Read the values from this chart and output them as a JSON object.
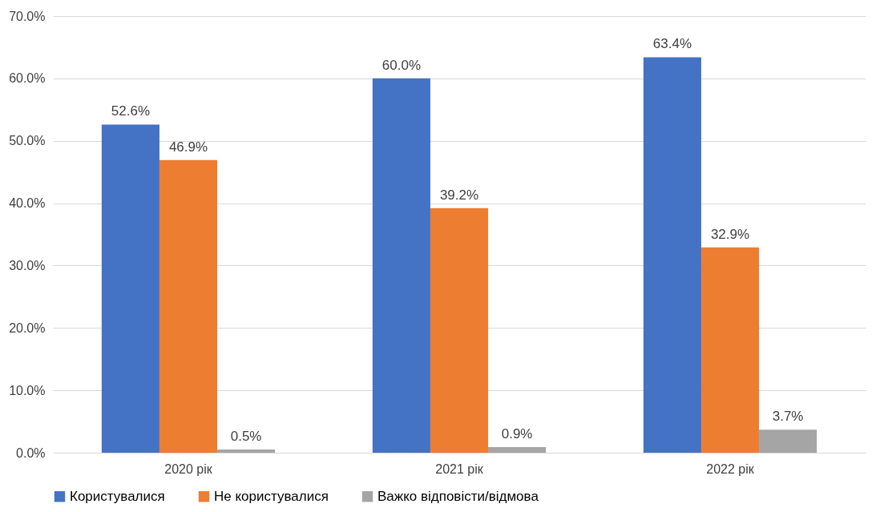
{
  "chart_data": {
    "type": "bar",
    "categories": [
      "2020 рік",
      "2021 рік",
      "2022 рік"
    ],
    "series": [
      {
        "name": "Користувалися",
        "color": "#4472c4",
        "values": [
          52.6,
          60.0,
          63.4
        ],
        "value_labels": [
          "52.6%",
          "60.0%",
          "63.4%"
        ]
      },
      {
        "name": "Не користувалися",
        "color": "#ed7d31",
        "values": [
          46.9,
          39.2,
          32.9
        ],
        "value_labels": [
          "46.9%",
          "39.2%",
          "32.9%"
        ]
      },
      {
        "name": "Важко відповісти/відмова",
        "color": "#a5a5a5",
        "values": [
          0.5,
          0.9,
          3.7
        ],
        "value_labels": [
          "0.5%",
          "0.9%",
          "3.7%"
        ]
      }
    ],
    "ylim": [
      0,
      70
    ],
    "yticks": [
      {
        "value": 0,
        "label": "0.0%"
      },
      {
        "value": 10,
        "label": "10.0%"
      },
      {
        "value": 20,
        "label": "20.0%"
      },
      {
        "value": 30,
        "label": "30.0%"
      },
      {
        "value": 40,
        "label": "40.0%"
      },
      {
        "value": 50,
        "label": "50.0%"
      },
      {
        "value": 60,
        "label": "60.0%"
      },
      {
        "value": 70,
        "label": "70.0%"
      }
    ],
    "grid": "y",
    "legend": "bottom"
  }
}
